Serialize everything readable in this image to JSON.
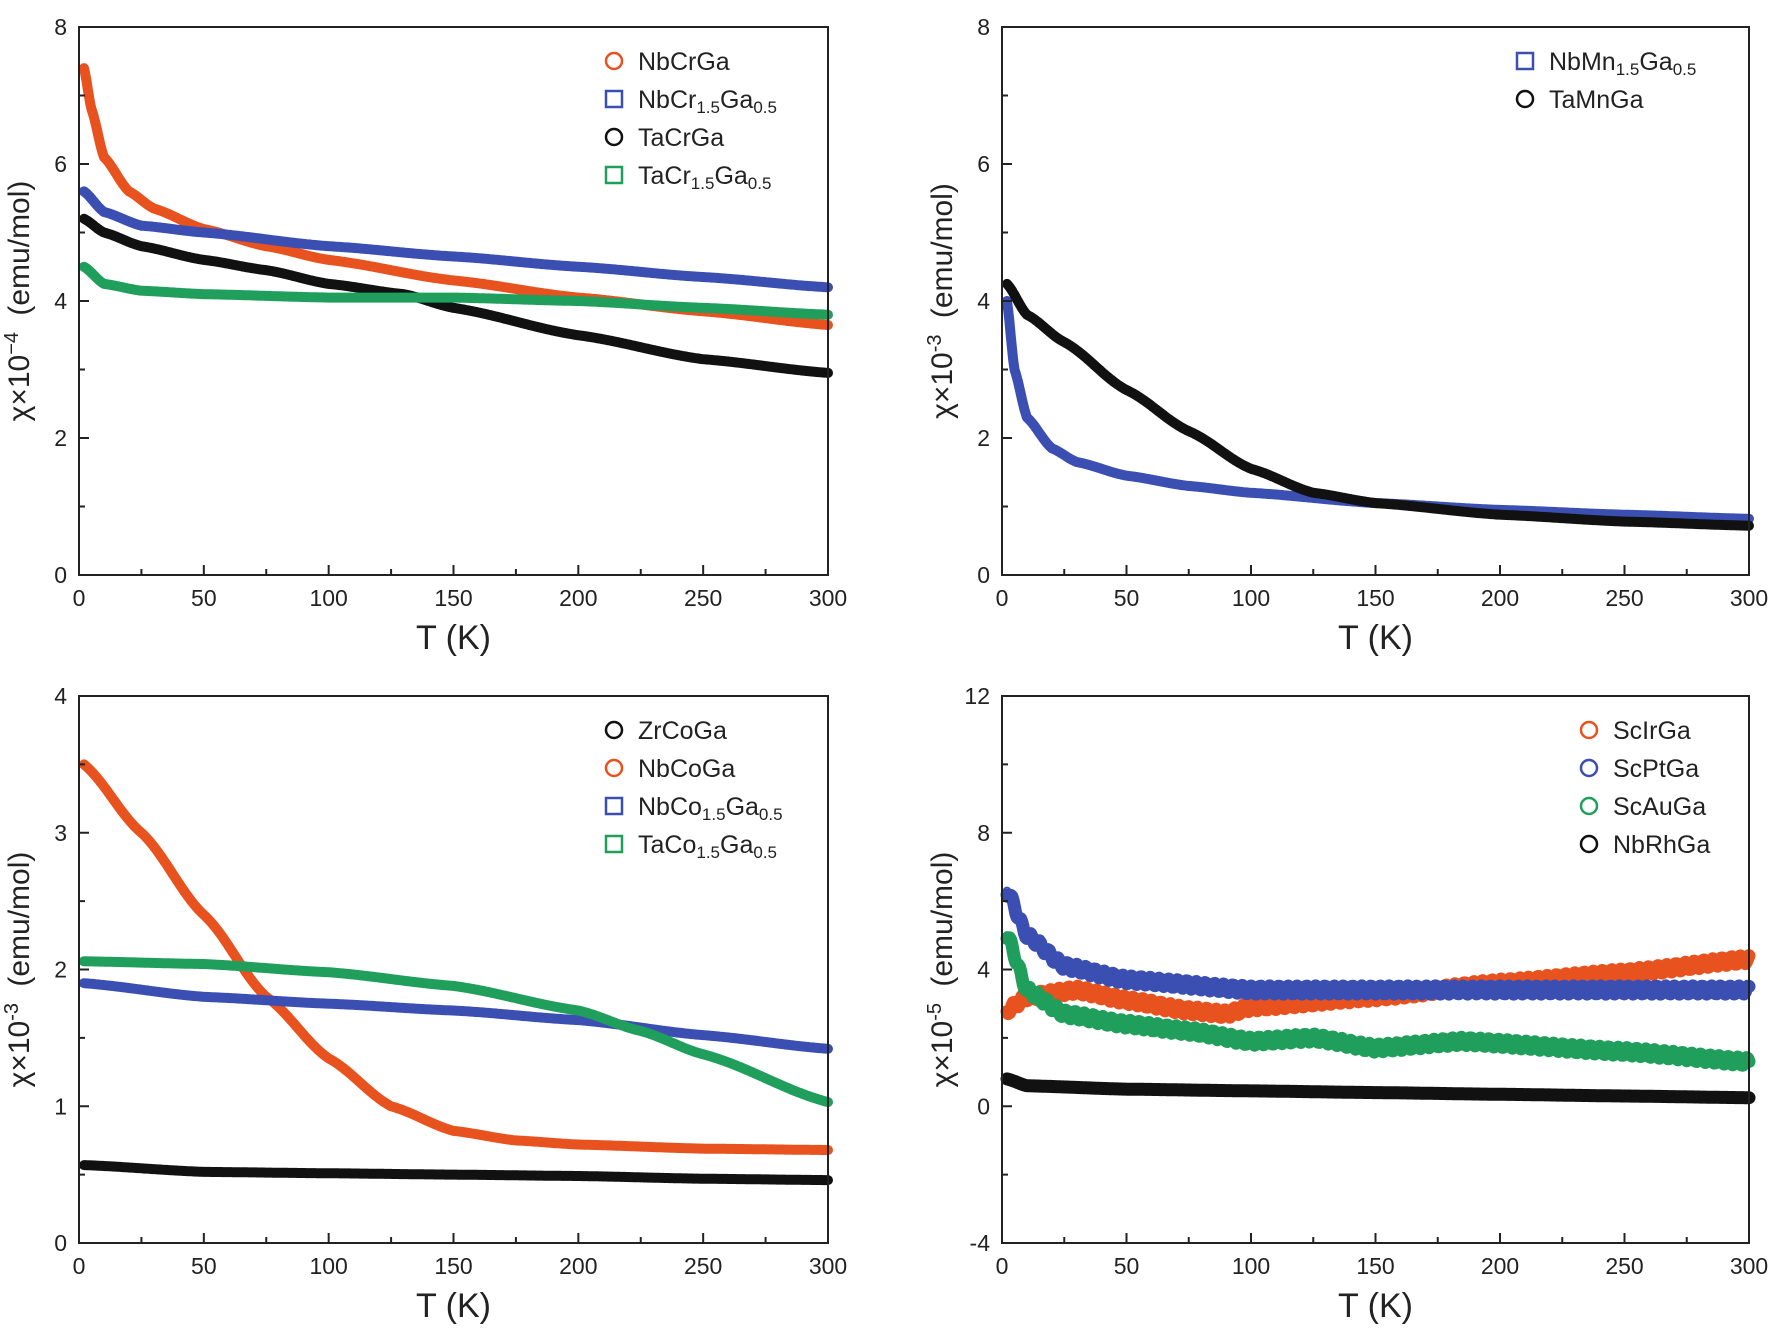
{
  "colors": {
    "orange": "#e8521f",
    "blue": "#3b4fb3",
    "black": "#111111",
    "green": "#1f9e5c"
  },
  "chart_data": [
    {
      "type": "scatter",
      "xlabel": "T (K)",
      "ylabel": {
        "prefix": "χ×10",
        "exp": "−4",
        "unit": "(emu/mol)"
      },
      "xlim": [
        0,
        300
      ],
      "ylim": [
        0,
        8
      ],
      "xticks": [
        0,
        50,
        100,
        150,
        200,
        250,
        300
      ],
      "yticks": [
        0,
        2,
        4,
        6,
        8
      ],
      "legend": "top-right",
      "series": [
        {
          "name": "NbCrGa",
          "marker": "circle",
          "color": "#e8521f",
          "x": [
            2,
            5,
            10,
            20,
            30,
            50,
            75,
            100,
            150,
            200,
            250,
            300
          ],
          "y": [
            7.4,
            6.8,
            6.1,
            5.6,
            5.35,
            5.05,
            4.8,
            4.6,
            4.3,
            4.05,
            3.85,
            3.65
          ]
        },
        {
          "name": "NbCr1.5Ga0.5",
          "marker": "square",
          "color": "#3b4fb3",
          "x": [
            2,
            10,
            25,
            50,
            100,
            150,
            200,
            250,
            300
          ],
          "y": [
            5.6,
            5.3,
            5.1,
            5.0,
            4.8,
            4.65,
            4.5,
            4.35,
            4.2
          ]
        },
        {
          "name": "TaCrGa",
          "marker": "circle",
          "color": "#111111",
          "x": [
            2,
            10,
            25,
            50,
            75,
            100,
            130,
            150,
            200,
            250,
            300
          ],
          "y": [
            5.2,
            5.0,
            4.8,
            4.6,
            4.45,
            4.25,
            4.1,
            3.9,
            3.5,
            3.15,
            2.95
          ]
        },
        {
          "name": "TaCr1.5Ga0.5",
          "marker": "square",
          "color": "#1f9e5c",
          "x": [
            2,
            10,
            25,
            50,
            100,
            150,
            200,
            250,
            300
          ],
          "y": [
            4.5,
            4.25,
            4.15,
            4.1,
            4.05,
            4.05,
            4.0,
            3.9,
            3.8
          ]
        }
      ]
    },
    {
      "type": "scatter",
      "xlabel": "T (K)",
      "ylabel": {
        "prefix": "χ×10",
        "exp": "-3",
        "unit": "(emu/mol)"
      },
      "xlim": [
        0,
        300
      ],
      "ylim": [
        0,
        8
      ],
      "xticks": [
        0,
        50,
        100,
        150,
        200,
        250,
        300
      ],
      "yticks": [
        0,
        2,
        4,
        6,
        8
      ],
      "legend": "top-right",
      "series": [
        {
          "name": "NbMn1.5Ga0.5",
          "marker": "square",
          "color": "#3b4fb3",
          "x": [
            2,
            5,
            10,
            20,
            30,
            50,
            75,
            100,
            150,
            200,
            250,
            300
          ],
          "y": [
            4.0,
            3.0,
            2.3,
            1.85,
            1.65,
            1.45,
            1.3,
            1.2,
            1.05,
            0.95,
            0.88,
            0.82
          ]
        },
        {
          "name": "TaMnGa",
          "marker": "circle",
          "color": "#111111",
          "x": [
            2,
            10,
            25,
            50,
            75,
            100,
            125,
            150,
            200,
            250,
            300
          ],
          "y": [
            4.25,
            3.8,
            3.4,
            2.7,
            2.1,
            1.55,
            1.2,
            1.05,
            0.88,
            0.78,
            0.72
          ]
        }
      ]
    },
    {
      "type": "scatter",
      "xlabel": "T (K)",
      "ylabel": {
        "prefix": "χ×10",
        "exp": "-3",
        "unit": "(emu/mol)"
      },
      "xlim": [
        0,
        300
      ],
      "ylim": [
        0,
        4
      ],
      "xticks": [
        0,
        50,
        100,
        150,
        200,
        250,
        300
      ],
      "yticks": [
        0,
        1,
        2,
        3,
        4
      ],
      "legend": "top-right",
      "series": [
        {
          "name": "ZrCoGa",
          "marker": "circle",
          "color": "#111111",
          "x": [
            2,
            50,
            100,
            150,
            200,
            250,
            300
          ],
          "y": [
            0.57,
            0.52,
            0.51,
            0.5,
            0.49,
            0.47,
            0.46
          ]
        },
        {
          "name": "NbCoGa",
          "marker": "circle",
          "color": "#e8521f",
          "x": [
            2,
            25,
            50,
            75,
            100,
            125,
            150,
            175,
            200,
            250,
            300
          ],
          "y": [
            3.5,
            3.0,
            2.4,
            1.8,
            1.35,
            1.0,
            0.82,
            0.75,
            0.72,
            0.69,
            0.68
          ]
        },
        {
          "name": "NbCo1.5Ga0.5",
          "marker": "square",
          "color": "#3b4fb3",
          "x": [
            2,
            50,
            100,
            150,
            200,
            250,
            300
          ],
          "y": [
            1.9,
            1.8,
            1.75,
            1.7,
            1.63,
            1.52,
            1.42
          ]
        },
        {
          "name": "TaCo1.5Ga0.5",
          "marker": "square",
          "color": "#1f9e5c",
          "x": [
            2,
            50,
            100,
            150,
            200,
            225,
            250,
            300
          ],
          "y": [
            2.06,
            2.04,
            1.98,
            1.88,
            1.7,
            1.55,
            1.38,
            1.03
          ]
        }
      ]
    },
    {
      "type": "scatter",
      "xlabel": "T (K)",
      "ylabel": {
        "prefix": "χ×10",
        "exp": "-5",
        "unit": "(emu/mol)"
      },
      "xlim": [
        0,
        300
      ],
      "ylim": [
        -4,
        12
      ],
      "xticks": [
        0,
        50,
        100,
        150,
        200,
        250,
        300
      ],
      "yticks": [
        -4,
        0,
        4,
        8,
        12
      ],
      "legend": "top-right",
      "series": [
        {
          "name": "ScIrGa",
          "marker": "circle",
          "color": "#e8521f",
          "x": [
            2,
            10,
            30,
            50,
            75,
            90,
            100,
            150,
            200,
            250,
            300
          ],
          "y": [
            2.8,
            3.2,
            3.4,
            3.1,
            2.8,
            2.7,
            2.9,
            3.2,
            3.6,
            3.9,
            4.3
          ]
        },
        {
          "name": "ScPtGa",
          "marker": "circle",
          "color": "#3b4fb3",
          "x": [
            2,
            10,
            25,
            50,
            100,
            150,
            200,
            250,
            300
          ],
          "y": [
            6.3,
            5.0,
            4.1,
            3.7,
            3.4,
            3.4,
            3.4,
            3.4,
            3.4
          ]
        },
        {
          "name": "ScAuGa",
          "marker": "circle",
          "color": "#1f9e5c",
          "x": [
            2,
            10,
            25,
            50,
            75,
            100,
            125,
            150,
            185,
            250,
            300
          ],
          "y": [
            5.0,
            3.4,
            2.7,
            2.4,
            2.2,
            1.9,
            2.0,
            1.7,
            1.9,
            1.6,
            1.3
          ]
        },
        {
          "name": "NbRhGa",
          "marker": "circle",
          "color": "#111111",
          "x": [
            2,
            10,
            50,
            100,
            150,
            200,
            250,
            300
          ],
          "y": [
            0.8,
            0.6,
            0.5,
            0.45,
            0.4,
            0.35,
            0.3,
            0.25
          ]
        }
      ]
    }
  ]
}
